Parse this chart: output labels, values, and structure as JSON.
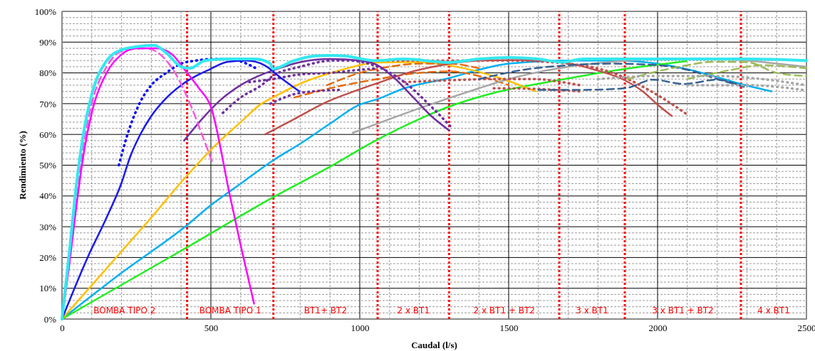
{
  "chart_data": {
    "type": "line",
    "xlabel": "Caudal  (l/s)",
    "ylabel": "Rendimiento  (%)",
    "xlim": [
      0,
      2500
    ],
    "ylim": [
      0,
      100
    ],
    "xticks": [
      0,
      {
        "value": 100,
        "label": null
      },
      {
        "value": 200,
        "label": null
      },
      {
        "value": 300,
        "label": null
      },
      {
        "value": 400,
        "label": null
      },
      500,
      {
        "value": 600,
        "label": null
      },
      {
        "value": 800,
        "label": null
      },
      {
        "value": 900,
        "label": null
      },
      1000,
      {
        "value": 1100,
        "label": null
      },
      {
        "value": 1200,
        "label": null
      },
      {
        "value": 1400,
        "label": null
      },
      1500,
      {
        "value": 1600,
        "label": null
      },
      {
        "value": 1700,
        "label": null
      },
      {
        "value": 1800,
        "label": null
      },
      2000,
      {
        "value": 2100,
        "label": null
      },
      {
        "value": 2200,
        "label": null
      },
      {
        "value": 2300,
        "label": null
      },
      {
        "value": 2400,
        "label": null
      },
      2500
    ],
    "yticks": [
      {
        "value": 0,
        "label": "0%"
      },
      {
        "value": 2,
        "label": null
      },
      {
        "value": 4,
        "label": null
      },
      {
        "value": 6,
        "label": null
      },
      {
        "value": 8,
        "label": null
      },
      {
        "value": 10,
        "label": "10%"
      },
      {
        "value": 12,
        "label": null
      },
      {
        "value": 14,
        "label": null
      },
      {
        "value": 16,
        "label": null
      },
      {
        "value": 18,
        "label": null
      },
      {
        "value": 20,
        "label": "20%"
      },
      {
        "value": 22,
        "label": null
      },
      {
        "value": 24,
        "label": null
      },
      {
        "value": 26,
        "label": null
      },
      {
        "value": 28,
        "label": null
      },
      {
        "value": 30,
        "label": "30%"
      },
      {
        "value": 32,
        "label": null
      },
      {
        "value": 34,
        "label": null
      },
      {
        "value": 36,
        "label": null
      },
      {
        "value": 38,
        "label": null
      },
      {
        "value": 40,
        "label": "40%"
      },
      {
        "value": 42,
        "label": null
      },
      {
        "value": 44,
        "label": null
      },
      {
        "value": 46,
        "label": null
      },
      {
        "value": 48,
        "label": null
      },
      {
        "value": 50,
        "label": "50%"
      },
      {
        "value": 52,
        "label": null
      },
      {
        "value": 54,
        "label": null
      },
      {
        "value": 56,
        "label": null
      },
      {
        "value": 58,
        "label": null
      },
      {
        "value": 60,
        "label": "60%"
      },
      {
        "value": 62,
        "label": null
      },
      {
        "value": 64,
        "label": null
      },
      {
        "value": 66,
        "label": null
      },
      {
        "value": 68,
        "label": null
      },
      {
        "value": 70,
        "label": "70%"
      },
      {
        "value": 72,
        "label": null
      },
      {
        "value": 74,
        "label": null
      },
      {
        "value": 76,
        "label": null
      },
      {
        "value": 78,
        "label": null
      },
      {
        "value": 80,
        "label": "80%"
      },
      {
        "value": 82,
        "label": null
      },
      {
        "value": 84,
        "label": null
      },
      {
        "value": 86,
        "label": null
      },
      {
        "value": 88,
        "label": null
      },
      {
        "value": 90,
        "label": "90%"
      },
      {
        "value": 92,
        "label": null
      },
      {
        "value": 94,
        "label": null
      },
      {
        "value": 96,
        "label": null
      },
      {
        "value": 98,
        "label": null
      },
      {
        "value": 100,
        "label": "100%"
      }
    ],
    "grid": true,
    "marker": "none",
    "series": [
      {
        "color": "#00b0f0",
        "line_style": "solid",
        "x": [
          0,
          200,
          420,
          500,
          600,
          708,
          800,
          900,
          995,
          1060,
          1150,
          1299,
          1400,
          1500,
          1700,
          1850,
          2000,
          2150,
          2280,
          2383
        ],
        "values": [
          0,
          15,
          30.5,
          37,
          44,
          51.5,
          57,
          63.5,
          69.5,
          71.5,
          75,
          78.3,
          81,
          83,
          84,
          84,
          83,
          80,
          76.4,
          74
        ]
      },
      {
        "color": "#22ee22",
        "line_style": "solid",
        "x": [
          0,
          420,
          708,
          900,
          1053,
          1200,
          1299,
          1450,
          1665,
          1890,
          2096
        ],
        "values": [
          0,
          23.3,
          39.5,
          49.5,
          58,
          65,
          69,
          73.5,
          77.6,
          81.3,
          83.8
        ]
      },
      {
        "color": "#ffc000",
        "line_style": "solid",
        "x": [
          0,
          100,
          200,
          300,
          414,
          510,
          600,
          670,
          708,
          800,
          940,
          1060,
          1200,
          1350,
          1480,
          1591
        ],
        "values": [
          0,
          11,
          22,
          33,
          46,
          56,
          64,
          70,
          72,
          76.5,
          81,
          83.4,
          83.5,
          81.5,
          78,
          74
        ]
      },
      {
        "color": "#e46c0a",
        "line_style": "dashed",
        "x": [
          780,
          900,
          1060,
          1200,
          1300,
          1400,
          1500
        ],
        "values": [
          72,
          75,
          78,
          80,
          80.5,
          79,
          76
        ]
      },
      {
        "color": "#e46c0a",
        "line_style": "dashed",
        "x": [
          890,
          1000,
          1100,
          1200,
          1300,
          1400
        ],
        "values": [
          76,
          80,
          82,
          83,
          83,
          81.5
        ]
      },
      {
        "color": "#a6a6a6",
        "line_style": "solid",
        "x": [
          976,
          1100,
          1200,
          1299,
          1400,
          1500,
          1586,
          1700,
          1785,
          1900,
          2000,
          2150,
          2300,
          2400,
          2500
        ],
        "values": [
          60.5,
          65,
          68.5,
          71.8,
          75,
          78,
          80,
          82,
          83,
          84,
          84.5,
          84.5,
          84,
          83,
          82
        ]
      },
      {
        "color": "#c0504d",
        "line_style": "solid",
        "x": [
          682,
          780,
          892,
          980,
          1060,
          1160,
          1268,
          1400,
          1550,
          1682,
          1790,
          1890,
          1950,
          2000,
          2048
        ],
        "values": [
          60,
          65,
          70.7,
          74,
          76.7,
          80,
          82.4,
          84,
          84.2,
          83.4,
          81,
          77.6,
          74,
          69.7,
          66
        ]
      },
      {
        "color": "#c0504d",
        "line_style": "dotted",
        "x": [
          1060,
          1300,
          1500,
          1700,
          1849,
          1900,
          1960,
          2030,
          2096
        ],
        "values": [
          84,
          84,
          84,
          83,
          80,
          78,
          75,
          71,
          66.7
        ]
      },
      {
        "color": "#c0504d",
        "line_style": "dotted",
        "x": [
          1150,
          1300,
          1450,
          1586,
          1680,
          1740
        ],
        "values": [
          77,
          77.6,
          78,
          78,
          77,
          76
        ]
      },
      {
        "color": "#c0504d",
        "line_style": "dotted",
        "x": [
          1450,
          1586,
          1737
        ],
        "values": [
          75,
          74.8,
          74
        ]
      },
      {
        "color": "#376092",
        "line_style": "dashed",
        "x": [
          1400,
          1550,
          1700,
          1850,
          2000,
          2100,
          2200,
          2290
        ],
        "values": [
          78,
          81,
          82.5,
          83,
          82.5,
          81,
          78,
          75.5
        ]
      },
      {
        "color": "#376092",
        "line_style": "dashed",
        "x": [
          1600,
          1750,
          1890,
          1986,
          2088,
          2200,
          2287
        ],
        "values": [
          74.5,
          74.5,
          75,
          77.8,
          76.4,
          77.8,
          75.5
        ]
      },
      {
        "color": "#9bbb59",
        "line_style": "dashed",
        "x": [
          1900,
          2000,
          2100,
          2184,
          2300,
          2400,
          2500
        ],
        "values": [
          78,
          80.5,
          82.5,
          83.6,
          83.5,
          80,
          79
        ]
      },
      {
        "color": "#9bbb59",
        "line_style": "dashed",
        "x": [
          2100,
          2250,
          2350,
          2500
        ],
        "values": [
          78,
          81,
          82.5,
          81.5
        ]
      },
      {
        "color": "#a6a6a6",
        "line_style": "dotted",
        "x": [
          1800,
          2000,
          2200,
          2350,
          2500
        ],
        "values": [
          78,
          79,
          79,
          78,
          76
        ]
      },
      {
        "color": "#a6a6a6",
        "line_style": "dotted",
        "x": [
          2100,
          2300,
          2495
        ],
        "values": [
          76,
          76,
          74.4
        ]
      },
      {
        "color": "#7030a0",
        "line_style": "dotted",
        "x": [
          540,
          600,
          670,
          708,
          800,
          909,
          960,
          1060,
          1150,
          1230,
          1306
        ],
        "values": [
          67,
          72,
          76,
          79,
          82,
          84,
          84,
          82,
          77,
          70,
          62.5
        ]
      },
      {
        "color": "#7030a0",
        "line_style": "dotted",
        "x": [
          700,
          800,
          933
        ],
        "values": [
          70,
          73.5,
          74.5
        ]
      },
      {
        "color": "#7030a0",
        "line_style": "dotted",
        "x": [
          629,
          708,
          800,
          900,
          1000,
          1060
        ],
        "values": [
          77,
          78,
          79.5,
          80,
          81,
          81.5
        ]
      },
      {
        "color": "#7030a0",
        "line_style": "solid",
        "x": [
          410,
          470,
          530,
          600,
          660,
          708,
          800,
          900,
          1000,
          1060,
          1120,
          1180,
          1240,
          1299
        ],
        "values": [
          58,
          65,
          71,
          76,
          79,
          80.8,
          83.5,
          84.5,
          84,
          82.5,
          78,
          72,
          66,
          61.4
        ]
      },
      {
        "color": "#0000ff",
        "line_style": "dotted",
        "x": [
          191,
          220,
          260,
          300,
          350,
          400,
          450,
          500,
          560,
          620,
          660
        ],
        "values": [
          50,
          60,
          70,
          76,
          80,
          83,
          84,
          84.5,
          84.5,
          83,
          81
        ]
      },
      {
        "color": "#1a1aee",
        "line_style": "solid",
        "x": [
          0,
          86,
          150,
          199,
          230,
          263,
          300,
          342,
          400,
          450,
          493,
          557,
          620,
          680,
          740,
          797
        ],
        "values": [
          0,
          20,
          33,
          44,
          53,
          60,
          66,
          71,
          76,
          79,
          81,
          83.6,
          84,
          82.5,
          78,
          74
        ]
      },
      {
        "color": "#ff55dd",
        "line_style": "dashed",
        "x": [
          0,
          25,
          50,
          75,
          100,
          150,
          200,
          280,
          330,
          380,
          430,
          470,
          505
        ],
        "values": [
          0,
          22,
          42,
          58,
          70,
          82,
          87,
          88,
          86,
          80,
          70,
          60,
          51
        ]
      },
      {
        "color": "#ff00ff",
        "line_style": "solid",
        "x": [
          0,
          25,
          50,
          75,
          100,
          150,
          200,
          250,
          318,
          370,
          420,
          460,
          500,
          562,
          600,
          645
        ],
        "values": [
          0,
          18,
          38,
          55,
          67,
          80,
          86,
          88,
          88,
          86,
          80,
          75,
          69,
          41,
          24,
          5
        ]
      },
      {
        "color": "#33e8f0",
        "line_style": "solid",
        "x": [
          0,
          25,
          50,
          75,
          100,
          150,
          200,
          250,
          310,
          350,
          400,
          430,
          480,
          550,
          650,
          700,
          708,
          780,
          850,
          900,
          950,
          1050,
          1150,
          1297,
          1400,
          1500,
          1600,
          1680,
          1750,
          1900,
          2100,
          2300,
          2500
        ],
        "values": [
          0,
          22,
          45,
          62,
          73,
          84,
          87.5,
          88.5,
          89,
          86.5,
          82,
          81.5,
          84,
          84.5,
          84.5,
          83,
          81.3,
          84,
          85.5,
          85.7,
          85.5,
          84,
          84.5,
          83.4,
          84.5,
          85,
          84.5,
          83.5,
          84.5,
          84.5,
          84.5,
          84.5,
          84
        ]
      }
    ],
    "ref_lines": [
      {
        "axis": "x",
        "value": 420,
        "color": "#ff0000",
        "line_style": "dotted"
      },
      {
        "axis": "x",
        "value": 710,
        "color": "#ff0000",
        "line_style": "dotted"
      },
      {
        "axis": "x",
        "value": 1060,
        "color": "#ff0000",
        "line_style": "dotted"
      },
      {
        "axis": "x",
        "value": 1300,
        "color": "#ff0000",
        "line_style": "dotted"
      },
      {
        "axis": "x",
        "value": 1670,
        "color": "#ff0000",
        "line_style": "dotted"
      },
      {
        "axis": "x",
        "value": 1890,
        "color": "#ff0000",
        "line_style": "dotted"
      },
      {
        "axis": "x",
        "value": 2280,
        "color": "#ff0000",
        "line_style": "dotted"
      }
    ],
    "annotations": [
      "BOMBA TIPO 2",
      "BOMBA TIPO 1",
      "BT1+ BT2",
      "2 x BT1",
      "2 x BT1 + BT2",
      "3 x BT1",
      "3 x BT1 + BT2",
      "4 x BT1"
    ]
  }
}
